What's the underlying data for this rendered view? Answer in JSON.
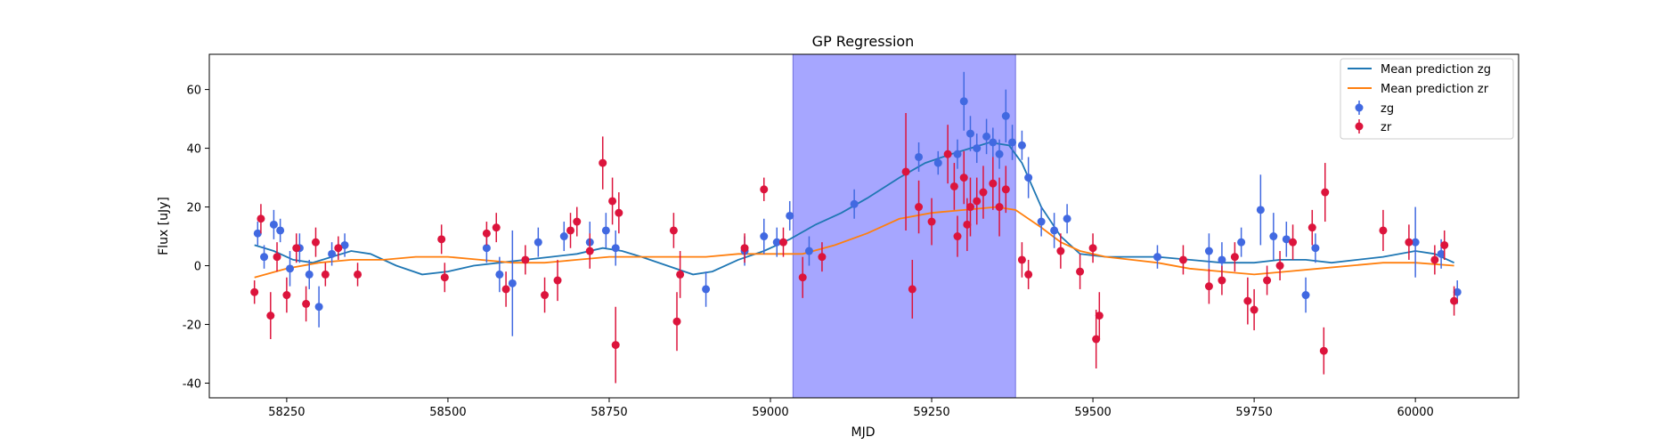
{
  "chart_data": {
    "type": "scatter",
    "title": "GP Regression",
    "xlabel": "MJD",
    "ylabel": "Flux [uJy]",
    "xlim": [
      58130,
      60160
    ],
    "ylim": [
      -45,
      72
    ],
    "x_ticks": [
      58250,
      58500,
      58750,
      59000,
      59250,
      59500,
      59750,
      60000
    ],
    "y_ticks": [
      -40,
      -20,
      0,
      20,
      40,
      60
    ],
    "grid": false,
    "legend_position": "top-right",
    "shaded_region": {
      "x_start": 59035,
      "x_end": 59380,
      "color": "#a6a6ff"
    },
    "series": [
      {
        "name": "Mean prediction zg",
        "kind": "line",
        "color": "#1f77b4",
        "x": [
          58200,
          58230,
          58260,
          58290,
          58320,
          58350,
          58380,
          58420,
          58460,
          58500,
          58540,
          58580,
          58620,
          58660,
          58700,
          58740,
          58770,
          58800,
          58840,
          58880,
          58910,
          58950,
          58990,
          59030,
          59070,
          59110,
          59150,
          59200,
          59240,
          59280,
          59310,
          59340,
          59370,
          59390,
          59420,
          59450,
          59480,
          59520,
          59560,
          59600,
          59650,
          59700,
          59750,
          59790,
          59830,
          59870,
          59910,
          59950,
          60000,
          60030,
          60060
        ],
        "y": [
          7,
          5,
          2,
          1,
          3,
          5,
          4,
          0,
          -3,
          -2,
          0,
          1,
          2,
          3,
          4,
          6,
          5,
          3,
          0,
          -3,
          -2,
          2,
          5,
          9,
          14,
          18,
          23,
          30,
          35,
          38,
          40,
          42,
          41,
          35,
          20,
          10,
          4,
          3,
          3,
          3,
          2,
          1,
          1,
          2,
          2,
          1,
          2,
          3,
          5,
          4,
          1
        ]
      },
      {
        "name": "Mean prediction zr",
        "kind": "line",
        "color": "#ff7f0e",
        "x": [
          58200,
          58250,
          58300,
          58350,
          58400,
          58450,
          58500,
          58550,
          58600,
          58650,
          58700,
          58750,
          58800,
          58850,
          58900,
          58950,
          59000,
          59050,
          59100,
          59150,
          59200,
          59250,
          59300,
          59350,
          59380,
          59420,
          59450,
          59480,
          59520,
          59560,
          59600,
          59650,
          59700,
          59750,
          59800,
          59850,
          59900,
          59950,
          60000,
          60060
        ],
        "y": [
          -4,
          -1,
          1,
          2,
          2,
          3,
          3,
          2,
          1,
          1,
          2,
          3,
          3,
          3,
          3,
          4,
          4,
          4,
          7,
          11,
          16,
          18,
          19,
          20,
          19,
          13,
          8,
          5,
          3,
          2,
          1,
          -1,
          -2,
          -3,
          -2,
          -1,
          0,
          1,
          1,
          0
        ]
      },
      {
        "name": "zg",
        "kind": "errorbar",
        "color": "#4169e1",
        "x": [
          58205,
          58215,
          58230,
          58240,
          58255,
          58270,
          58285,
          58300,
          58320,
          58340,
          58560,
          58580,
          58600,
          58640,
          58680,
          58720,
          58745,
          58760,
          58900,
          58960,
          58990,
          59010,
          59030,
          59060,
          59130,
          59230,
          59260,
          59290,
          59300,
          59310,
          59320,
          59335,
          59345,
          59355,
          59365,
          59375,
          59390,
          59400,
          59420,
          59440,
          59460,
          59600,
          59680,
          59700,
          59730,
          59760,
          59780,
          59800,
          59830,
          59845,
          60000,
          60040,
          60065
        ],
        "y": [
          11,
          3,
          14,
          12,
          -1,
          6,
          -3,
          -14,
          4,
          7,
          6,
          -3,
          -6,
          8,
          10,
          8,
          12,
          6,
          -8,
          5,
          10,
          8,
          17,
          5,
          21,
          37,
          35,
          38,
          56,
          45,
          40,
          44,
          42,
          38,
          51,
          42,
          41,
          30,
          15,
          12,
          16,
          3,
          5,
          2,
          8,
          19,
          10,
          9,
          -10,
          6,
          8,
          4,
          -9
        ],
        "yerr": [
          4,
          4,
          5,
          4,
          6,
          5,
          5,
          7,
          4,
          4,
          5,
          6,
          18,
          5,
          5,
          7,
          6,
          6,
          6,
          5,
          6,
          5,
          5,
          5,
          5,
          5,
          4,
          5,
          10,
          6,
          5,
          6,
          5,
          5,
          9,
          6,
          5,
          7,
          5,
          6,
          5,
          4,
          6,
          6,
          5,
          12,
          8,
          6,
          6,
          5,
          12,
          5,
          4
        ]
      },
      {
        "name": "zr",
        "kind": "errorbar",
        "color": "#dc143c",
        "x": [
          58200,
          58210,
          58225,
          58235,
          58250,
          58265,
          58280,
          58295,
          58310,
          58330,
          58360,
          58490,
          58495,
          58560,
          58575,
          58590,
          58620,
          58650,
          58670,
          58690,
          58700,
          58720,
          58740,
          58755,
          58760,
          58765,
          58850,
          58855,
          58860,
          58960,
          58990,
          59020,
          59050,
          59080,
          59210,
          59220,
          59230,
          59250,
          59275,
          59285,
          59290,
          59300,
          59305,
          59310,
          59320,
          59330,
          59345,
          59355,
          59365,
          59390,
          59400,
          59450,
          59480,
          59500,
          59505,
          59510,
          59640,
          59680,
          59700,
          59720,
          59740,
          59750,
          59770,
          59790,
          59810,
          59840,
          59858,
          59860,
          59950,
          59990,
          60030,
          60045,
          60060
        ],
        "y": [
          -9,
          16,
          -17,
          3,
          -10,
          6,
          -13,
          8,
          -3,
          6,
          -3,
          9,
          -4,
          11,
          13,
          -8,
          2,
          -10,
          -5,
          12,
          15,
          5,
          35,
          22,
          -27,
          18,
          12,
          -19,
          -3,
          6,
          26,
          8,
          -4,
          3,
          32,
          -8,
          20,
          15,
          38,
          27,
          10,
          30,
          14,
          20,
          22,
          25,
          28,
          20,
          26,
          2,
          -3,
          5,
          -2,
          6,
          -25,
          -17,
          2,
          -7,
          -5,
          3,
          -12,
          -15,
          -5,
          0,
          8,
          13,
          -29,
          25,
          12,
          8,
          2,
          7,
          -12
        ],
        "yerr": [
          4,
          5,
          8,
          5,
          6,
          5,
          6,
          5,
          4,
          4,
          4,
          5,
          5,
          4,
          5,
          6,
          5,
          6,
          7,
          6,
          5,
          6,
          9,
          8,
          13,
          7,
          6,
          10,
          8,
          5,
          4,
          5,
          7,
          5,
          20,
          10,
          9,
          8,
          10,
          8,
          7,
          9,
          9,
          10,
          8,
          9,
          9,
          10,
          8,
          6,
          5,
          6,
          6,
          5,
          10,
          8,
          5,
          6,
          5,
          5,
          8,
          7,
          5,
          5,
          6,
          6,
          8,
          10,
          7,
          6,
          5,
          5,
          5
        ]
      }
    ]
  }
}
